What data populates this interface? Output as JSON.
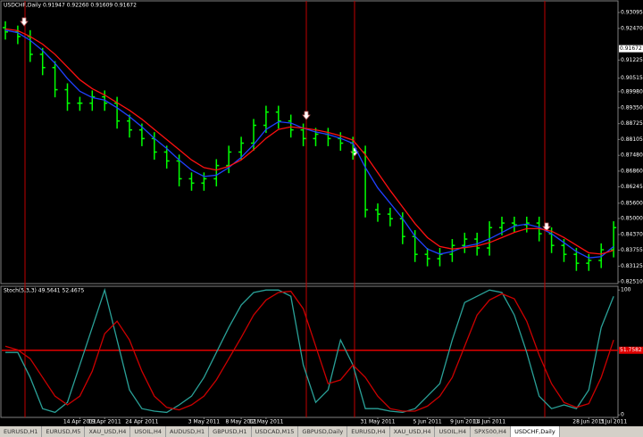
{
  "chart_data": [
    {
      "type": "ohlc",
      "title": "USDCHF,Daily  0.91947 0.92260 0.91609 0.91672",
      "categories": [
        null,
        null,
        null,
        null,
        null,
        null,
        "14 Apr 2011",
        null,
        "19 Apr 2011",
        null,
        null,
        "24 Apr 2011",
        null,
        null,
        null,
        null,
        "3 May 2011",
        null,
        null,
        "8 May 2011",
        null,
        "12 May 2011",
        null,
        null,
        null,
        null,
        null,
        null,
        null,
        null,
        "31 May 2011",
        null,
        null,
        null,
        "5 Jun 2011",
        null,
        null,
        "9 Jun 2011",
        null,
        "14 Jun 2011",
        null,
        null,
        null,
        null,
        null,
        null,
        null,
        "28 Jun 2011",
        null,
        "3 Jul 2011"
      ],
      "open": [
        0.925,
        0.9233,
        0.9215,
        0.9145,
        0.9093,
        0.9006,
        0.8953,
        0.8953,
        0.8978,
        0.8953,
        0.8883,
        0.8848,
        0.8814,
        0.8761,
        0.8726,
        0.8656,
        0.8639,
        0.8656,
        0.8708,
        0.8761,
        0.8796,
        0.8866,
        0.8918,
        0.8883,
        0.8848,
        0.8814,
        0.8831,
        0.8814,
        0.8796,
        0.8761,
        0.8534,
        0.8517,
        0.8499,
        0.8429,
        0.8359,
        0.8342,
        0.8359,
        0.8394,
        0.8419,
        0.8384,
        0.8464,
        0.8482,
        0.8475,
        0.8482,
        0.844,
        0.8394,
        0.8359,
        0.8324,
        0.8335,
        0.8377
      ],
      "high": [
        0.9275,
        0.9258,
        0.924,
        0.917,
        0.9118,
        0.9031,
        0.8978,
        0.9003,
        0.9003,
        0.8978,
        0.8908,
        0.8873,
        0.8839,
        0.8786,
        0.8751,
        0.8681,
        0.8681,
        0.8733,
        0.8786,
        0.8821,
        0.8891,
        0.8943,
        0.8943,
        0.8908,
        0.8873,
        0.8856,
        0.8856,
        0.8839,
        0.8821,
        0.8786,
        0.8559,
        0.8542,
        0.8524,
        0.8454,
        0.8384,
        0.8384,
        0.8419,
        0.8444,
        0.8444,
        0.8489,
        0.8507,
        0.8507,
        0.8507,
        0.8507,
        0.8465,
        0.8419,
        0.8384,
        0.836,
        0.8402,
        0.8489
      ],
      "low": [
        0.9203,
        0.9185,
        0.9115,
        0.9063,
        0.8976,
        0.8923,
        0.8923,
        0.8923,
        0.8923,
        0.8853,
        0.8818,
        0.8784,
        0.8731,
        0.8696,
        0.8626,
        0.8609,
        0.8609,
        0.8626,
        0.8678,
        0.8731,
        0.8766,
        0.8836,
        0.8853,
        0.8818,
        0.8784,
        0.8784,
        0.8784,
        0.8766,
        0.8731,
        0.8504,
        0.8487,
        0.8469,
        0.8399,
        0.8329,
        0.8312,
        0.8312,
        0.8329,
        0.8364,
        0.8354,
        0.8354,
        0.8434,
        0.8445,
        0.8445,
        0.841,
        0.8364,
        0.8329,
        0.8294,
        0.8294,
        0.8305,
        0.8347
      ],
      "close": [
        0.9233,
        0.9215,
        0.9145,
        0.9093,
        0.9006,
        0.8953,
        0.8953,
        0.8978,
        0.8953,
        0.8883,
        0.8848,
        0.8814,
        0.8761,
        0.8726,
        0.8656,
        0.8639,
        0.8656,
        0.8708,
        0.8761,
        0.8796,
        0.8866,
        0.8918,
        0.8883,
        0.8848,
        0.8814,
        0.8831,
        0.8814,
        0.8796,
        0.8761,
        0.8534,
        0.8517,
        0.8499,
        0.8429,
        0.8359,
        0.8342,
        0.8359,
        0.8394,
        0.8419,
        0.8384,
        0.8464,
        0.8482,
        0.8475,
        0.8482,
        0.844,
        0.8394,
        0.8359,
        0.8324,
        0.8335,
        0.8377,
        0.8464
      ],
      "color": "#00ff00",
      "series": [
        {
          "color": "#2040ff",
          "values": [
            0.924,
            0.923,
            0.92,
            0.916,
            0.911,
            0.905,
            0.9,
            0.8975,
            0.8965,
            0.8935,
            0.89,
            0.886,
            0.8815,
            0.8775,
            0.873,
            0.869,
            0.8665,
            0.867,
            0.87,
            0.874,
            0.879,
            0.885,
            0.888,
            0.8875,
            0.8855,
            0.884,
            0.883,
            0.8815,
            0.8795,
            0.87,
            0.862,
            0.856,
            0.85,
            0.843,
            0.838,
            0.836,
            0.837,
            0.839,
            0.84,
            0.842,
            0.8445,
            0.847,
            0.8478,
            0.8465,
            0.844,
            0.8405,
            0.837,
            0.8345,
            0.835,
            0.839
          ]
        },
        {
          "color": "#ff1010",
          "values": [
            0.9245,
            0.9238,
            0.9215,
            0.9185,
            0.9145,
            0.9095,
            0.9045,
            0.901,
            0.8985,
            0.8955,
            0.8925,
            0.889,
            0.885,
            0.881,
            0.877,
            0.873,
            0.87,
            0.869,
            0.8705,
            0.873,
            0.877,
            0.8815,
            0.885,
            0.886,
            0.8855,
            0.8848,
            0.8838,
            0.8825,
            0.8808,
            0.875,
            0.868,
            0.861,
            0.8545,
            0.848,
            0.8425,
            0.839,
            0.838,
            0.8385,
            0.8392,
            0.8405,
            0.8425,
            0.8445,
            0.846,
            0.846,
            0.845,
            0.8425,
            0.8395,
            0.8365,
            0.836,
            0.8375
          ]
        }
      ],
      "ylim": [
        0.8244,
        0.9355
      ],
      "yticks": [
        {
          "value": 0.93095,
          "label": "0.93095"
        },
        {
          "value": 0.9247,
          "label": "0.92470"
        },
        {
          "value": 0.91225,
          "label": "0.91225"
        },
        {
          "value": 0.90515,
          "label": "0.90515"
        },
        {
          "value": 0.8998,
          "label": "0.89980"
        },
        {
          "value": 0.8935,
          "label": "0.89350"
        },
        {
          "value": 0.88725,
          "label": "0.88725"
        },
        {
          "value": 0.88105,
          "label": "0.88105"
        },
        {
          "value": 0.8748,
          "label": "0.87480"
        },
        {
          "value": 0.8686,
          "label": "0.86860"
        },
        {
          "value": 0.86245,
          "label": "0.86245"
        },
        {
          "value": 0.856,
          "label": "0.85600"
        },
        {
          "value": 0.85,
          "label": "0.85000"
        },
        {
          "value": 0.8437,
          "label": "0.84370"
        },
        {
          "value": 0.83755,
          "label": "0.83755"
        },
        {
          "value": 0.83125,
          "label": "0.83125"
        },
        {
          "value": 0.8251,
          "label": "0.82510"
        }
      ],
      "price_label": {
        "value": 0.91672,
        "label": "0.91672"
      }
    },
    {
      "type": "line",
      "title": "Stoch(5,3,3) 49.5641 52.4675",
      "series": [
        {
          "color": "#2aa198",
          "values": [
            50,
            50,
            30,
            5,
            2,
            10,
            40,
            70,
            100,
            60,
            20,
            5,
            3,
            2,
            8,
            15,
            30,
            50,
            70,
            88,
            98,
            100,
            100,
            95,
            40,
            10,
            20,
            60,
            40,
            5,
            5,
            3,
            2,
            5,
            15,
            25,
            60,
            90,
            95,
            100,
            98,
            80,
            50,
            15,
            5,
            8,
            5,
            20,
            70,
            95
          ]
        },
        {
          "color": "#cc0000",
          "values": [
            55,
            52,
            45,
            30,
            15,
            8,
            15,
            35,
            65,
            75,
            60,
            35,
            15,
            6,
            4,
            8,
            15,
            28,
            45,
            62,
            80,
            92,
            98,
            99,
            85,
            55,
            25,
            28,
            40,
            30,
            15,
            5,
            3,
            3,
            7,
            15,
            30,
            55,
            80,
            92,
            97,
            93,
            75,
            48,
            25,
            10,
            6,
            9,
            30,
            60
          ]
        }
      ],
      "ylim": [
        -2,
        103
      ],
      "yticks": [
        100,
        0
      ],
      "level": 51.7582
    }
  ],
  "tabs": [
    "EURUSD,H1",
    "EURUSD,M5",
    "XAU_USD,H4",
    "USOIL,H4",
    "AUDUSD,H1",
    "GBPUSD,H1",
    "USDCAD,M15",
    "GBPUSD,Daily",
    "EURUSD,H4",
    "XAU_USD,H4",
    "USOIL,H4",
    "SPX500,H4",
    "USDCHF,Daily"
  ],
  "active_tab": 12
}
